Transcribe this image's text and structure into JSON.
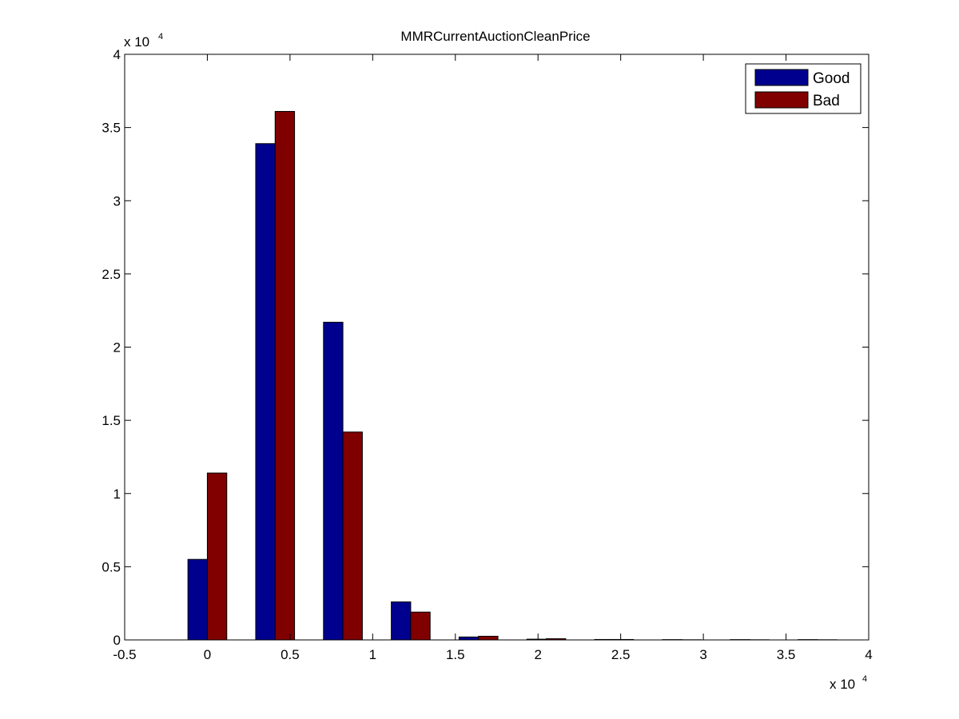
{
  "chart_data": {
    "type": "bar",
    "title": "MMRCurrentAuctionCleanPrice",
    "x_multiplier_label": "x 10",
    "x_multiplier_exp": "4",
    "y_multiplier_label": "x 10",
    "y_multiplier_exp": "4",
    "xlim": [
      -0.5,
      4
    ],
    "ylim": [
      0,
      4
    ],
    "x_ticks": [
      -0.5,
      0,
      0.5,
      1,
      1.5,
      2,
      2.5,
      3,
      3.5,
      4
    ],
    "x_tick_labels": [
      "-0.5",
      "0",
      "0.5",
      "1",
      "1.5",
      "2",
      "2.5",
      "3",
      "3.5",
      "4"
    ],
    "y_ticks": [
      0,
      0.5,
      1,
      1.5,
      2,
      2.5,
      3,
      3.5,
      4
    ],
    "y_tick_labels": [
      "0",
      "0.5",
      "1",
      "1.5",
      "2",
      "2.5",
      "3",
      "3.5",
      "4"
    ],
    "x": [
      0,
      0.41,
      0.82,
      1.23,
      1.64,
      2.05,
      2.46,
      2.87,
      3.28,
      3.69
    ],
    "bar_group_width": 0.235,
    "series": [
      {
        "name": "Good",
        "color": "#00008f",
        "values": [
          0.55,
          3.39,
          2.17,
          0.26,
          0.02,
          0.005,
          0.003,
          0.002,
          0.002,
          0.002
        ]
      },
      {
        "name": "Bad",
        "color": "#800000",
        "values": [
          1.14,
          3.61,
          1.42,
          0.19,
          0.025,
          0.008,
          0.003,
          0.001,
          0.001,
          0.001
        ]
      }
    ],
    "legend_position": "top-right",
    "grid": false
  }
}
